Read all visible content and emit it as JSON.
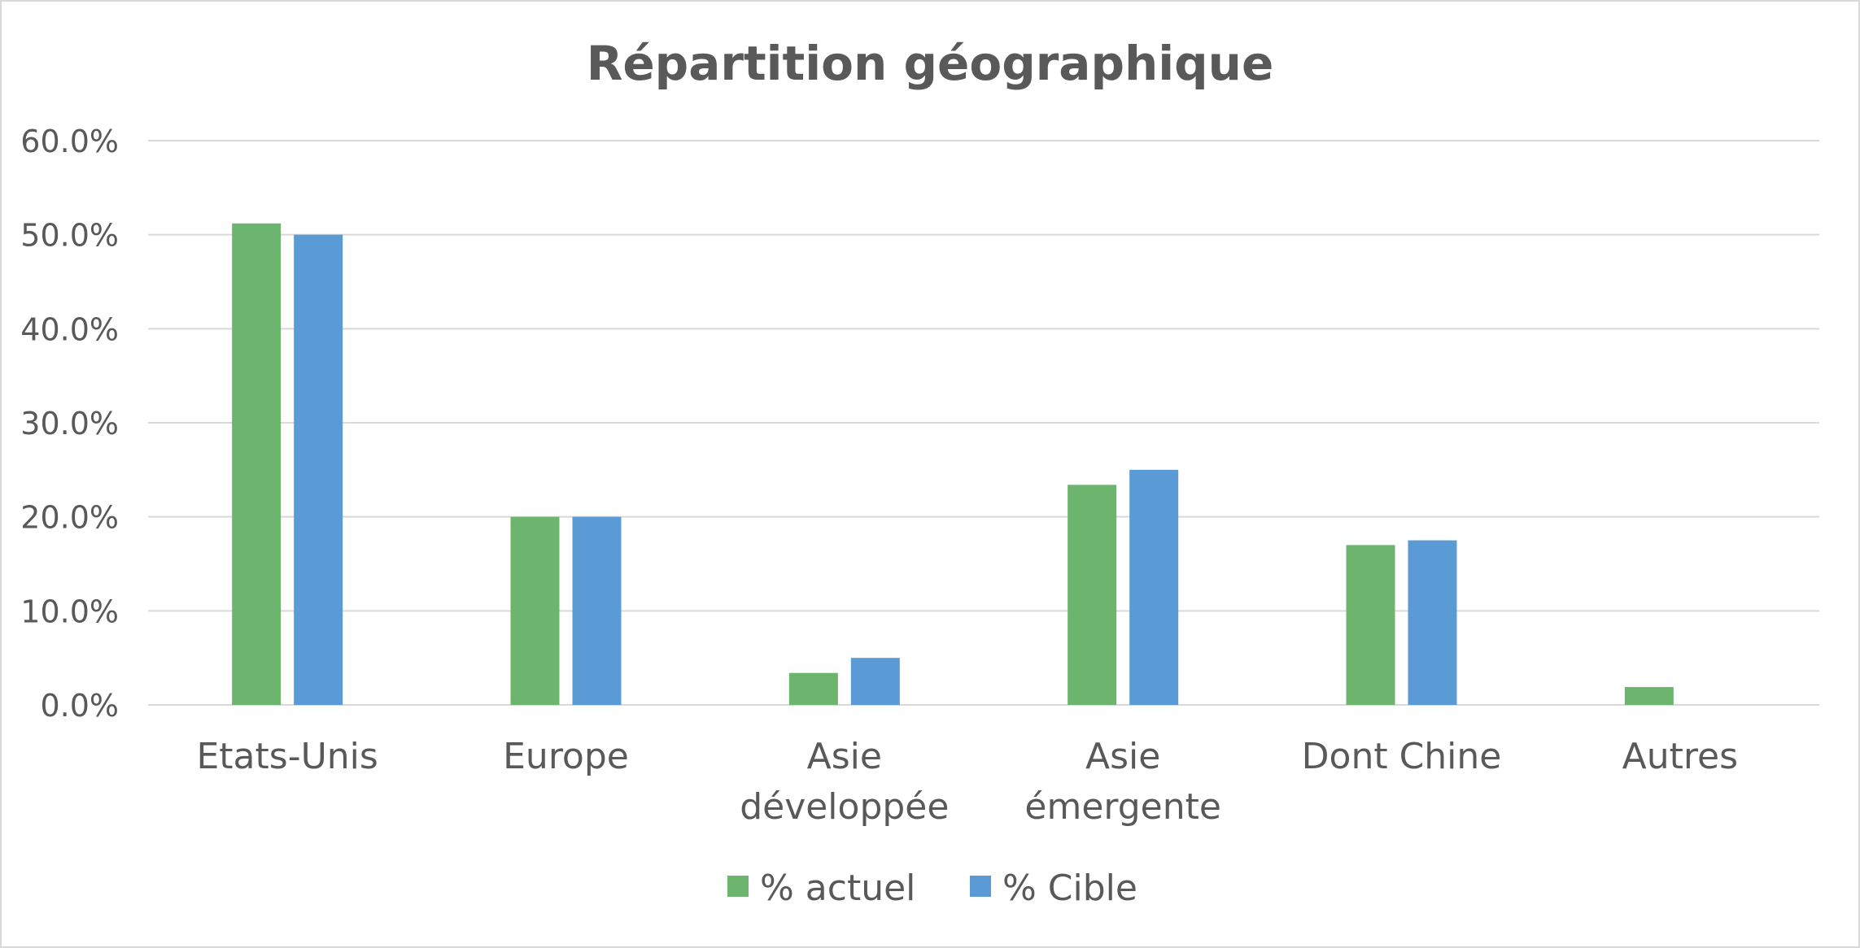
{
  "chart_data": {
    "type": "bar",
    "title": "Répartition géographique",
    "xlabel": "",
    "ylabel": "",
    "categories": [
      [
        "Etats-Unis"
      ],
      [
        "Europe"
      ],
      [
        "Asie",
        "développée"
      ],
      [
        "Asie",
        "émergente"
      ],
      [
        "Dont Chine"
      ],
      [
        "Autres"
      ]
    ],
    "series": [
      {
        "name": "% actuel",
        "color": "#6db56f",
        "values": [
          51.2,
          20.0,
          3.4,
          23.4,
          17.0,
          1.9
        ]
      },
      {
        "name": "% Cible",
        "color": "#5b9bd5",
        "values": [
          50.0,
          20.0,
          5.0,
          25.0,
          17.5,
          null
        ]
      }
    ],
    "ylim": [
      0,
      60
    ],
    "yticks": [
      "0.0%",
      "10.0%",
      "20.0%",
      "30.0%",
      "40.0%",
      "50.0%",
      "60.0%"
    ],
    "grid": true,
    "legend_position": "bottom"
  }
}
